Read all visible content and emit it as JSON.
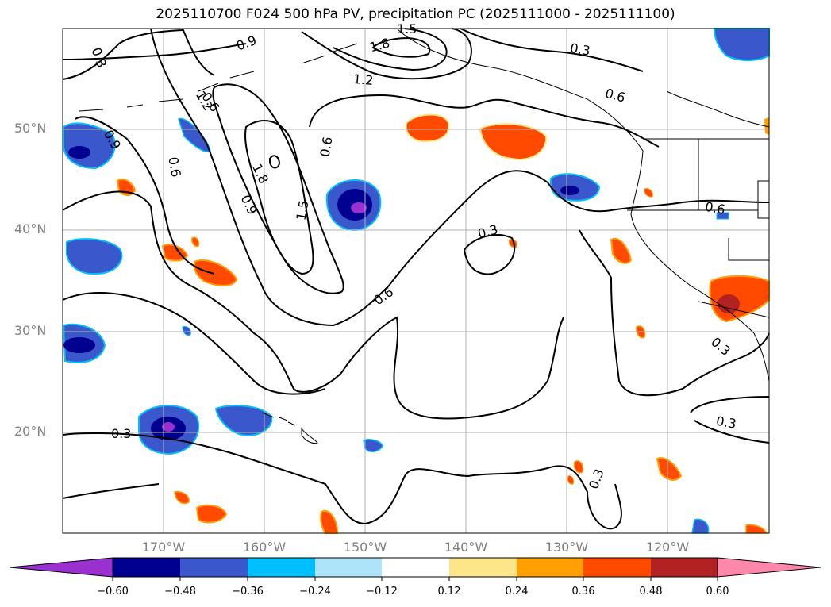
{
  "title": "2025110700 F024 500 hPa PV, precipitation PC (2025111000 - 2025111100)",
  "map": {
    "lat_labels": [
      "50°N",
      "40°N",
      "30°N",
      "20°N"
    ],
    "lon_labels": [
      "170°W",
      "160°W",
      "150°W",
      "140°W",
      "130°W",
      "120°W"
    ],
    "contour_labels": [
      "0.3",
      "0.9",
      "1.5",
      "1.8",
      "1.2",
      "0.3",
      "0.6",
      "0.6",
      "0.9",
      "1.2",
      "0.6",
      "1.8",
      "0.9",
      "1.5",
      "0.6",
      "0.6",
      "0.3",
      "0.6",
      "0.3",
      "0.3",
      "0.3",
      "0.3"
    ],
    "land_color": "#ffffff",
    "grid": true
  },
  "colorbar": {
    "ticks": [
      "−0.60",
      "−0.48",
      "−0.36",
      "−0.24",
      "−0.12",
      "0.12",
      "0.24",
      "0.36",
      "0.48",
      "0.60"
    ],
    "colors": [
      "#9b30d0",
      "#000090",
      "#3a58cc",
      "#00bfff",
      "#aee4fa",
      "#ffffff",
      "#fde68a",
      "#ffa000",
      "#ff4a00",
      "#b22222",
      "#ff88aa",
      "#ff88aa"
    ]
  }
}
